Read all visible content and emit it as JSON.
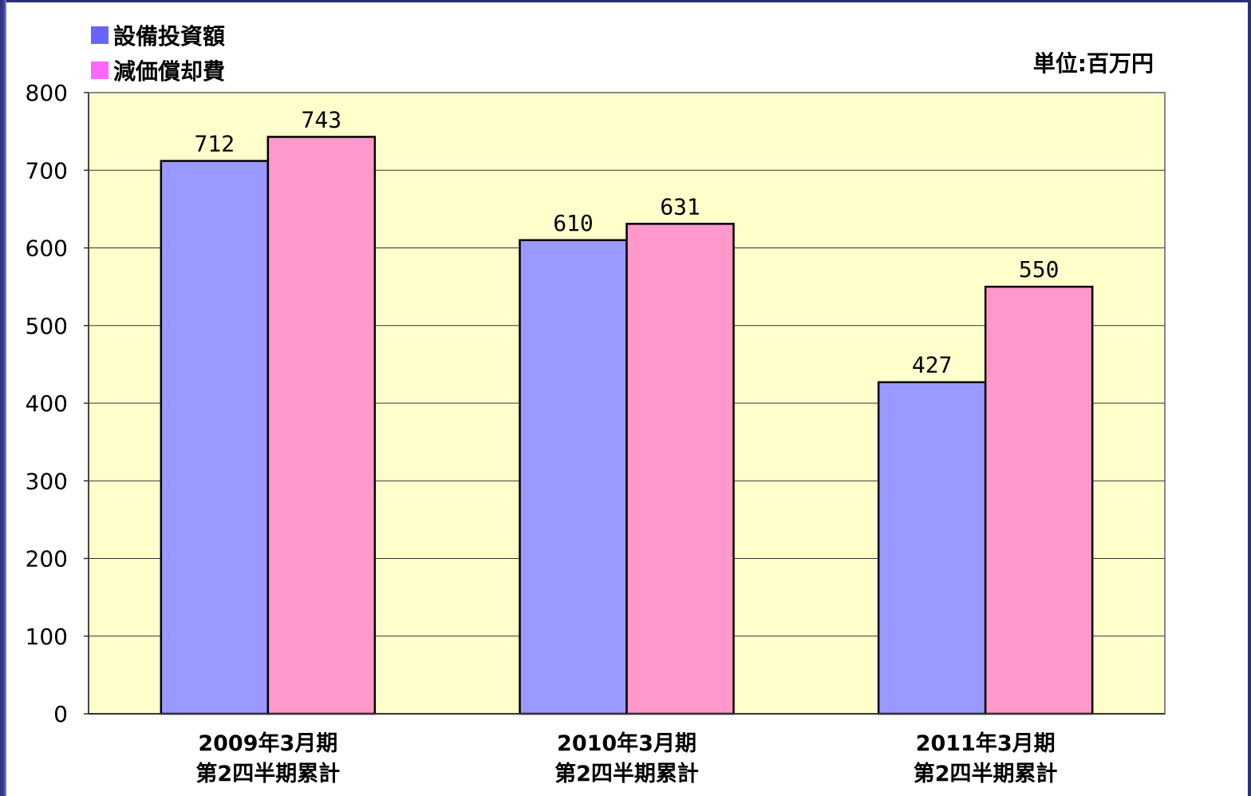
{
  "chart_data": {
    "type": "bar",
    "unit_label": "単位:百万円",
    "categories": [
      [
        "2009年3月期",
        "第2四半期累計"
      ],
      [
        "2010年3月期",
        "第2四半期累計"
      ],
      [
        "2011年3月期",
        "第2四半期累計"
      ]
    ],
    "series": [
      {
        "name": "設備投資額",
        "color": "#9999ff",
        "values": [
          712,
          610,
          427
        ],
        "data_labels": [
          "712",
          "610",
          "427"
        ]
      },
      {
        "name": "減価償却費",
        "color": "#ff99cc",
        "values": [
          743,
          631,
          550
        ],
        "data_labels": [
          "743",
          "631",
          "550"
        ]
      }
    ],
    "legend_swatch_colors": [
      "#6666ff",
      "#ff66ff"
    ],
    "ylim": [
      0,
      800
    ],
    "yticks": [
      0,
      100,
      200,
      300,
      400,
      500,
      600,
      700,
      800
    ],
    "ytick_labels": [
      "0",
      "100",
      "200",
      "300",
      "400",
      "500",
      "600",
      "700",
      "800"
    ],
    "plot_background": "#ffffcc",
    "grid": true,
    "legend_position": "top-left"
  }
}
